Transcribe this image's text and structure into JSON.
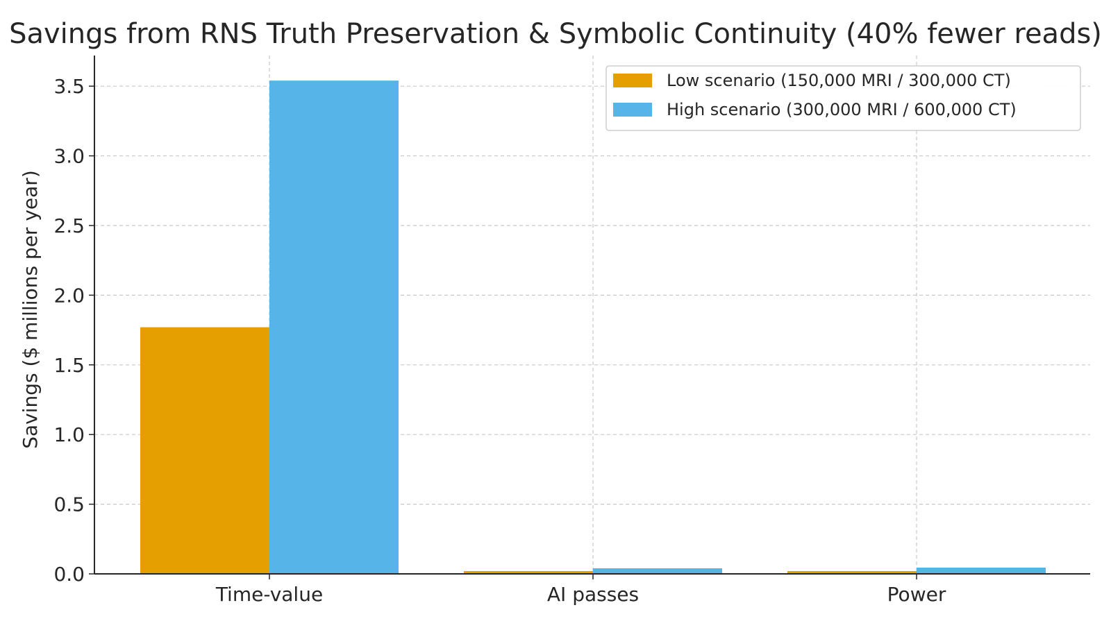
{
  "chart_data": {
    "type": "bar",
    "title": "Savings from RNS Truth Preservation & Symbolic Continuity (40% fewer reads)",
    "xlabel": "",
    "ylabel": "Savings ($ millions per year)",
    "categories": [
      "Time-value",
      "AI passes",
      "Power"
    ],
    "series": [
      {
        "name": "Low scenario (150,000 MRI / 300,000 CT)",
        "color": "#E69F00",
        "values": [
          1.77,
          0.02,
          0.02
        ]
      },
      {
        "name": "High scenario (300,000 MRI / 600,000 CT)",
        "color": "#56B4E9",
        "values": [
          3.54,
          0.04,
          0.045
        ]
      }
    ],
    "ylim": [
      0,
      3.72
    ],
    "yticks": [
      "0.0",
      "0.5",
      "1.0",
      "1.5",
      "2.0",
      "2.5",
      "3.0",
      "3.5"
    ],
    "grid": true,
    "legend_position": "top-right"
  }
}
